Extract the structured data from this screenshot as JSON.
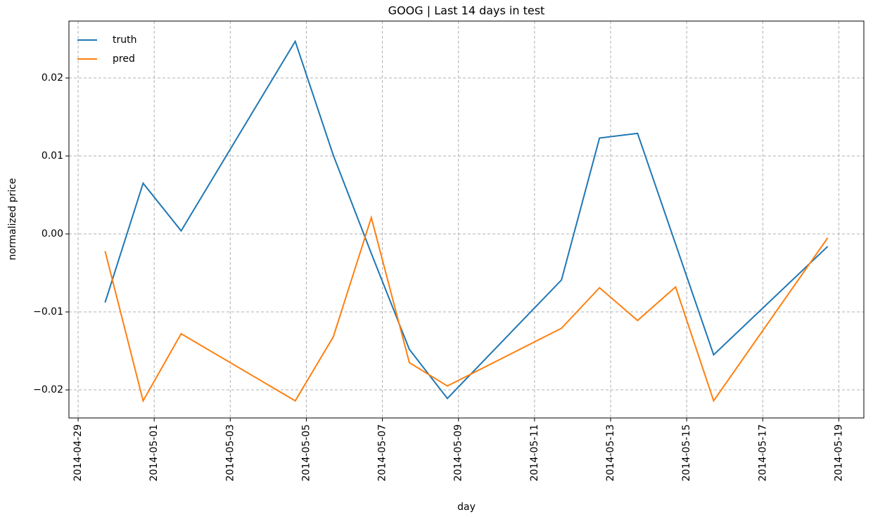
{
  "chart_data": {
    "type": "line",
    "title": "GOOG | Last 14 days in test",
    "xlabel": "day",
    "ylabel": "normalized price",
    "x": [
      "2014-04-29T17:00",
      "2014-04-30T17:00",
      "2014-05-01T17:00",
      "2014-05-04T17:00",
      "2014-05-05T17:00",
      "2014-05-06T17:00",
      "2014-05-07T17:00",
      "2014-05-08T17:00",
      "2014-05-11T17:00",
      "2014-05-12T17:00",
      "2014-05-13T17:00",
      "2014-05-14T17:00",
      "2014-05-15T17:00",
      "2014-05-18T17:00"
    ],
    "series": [
      {
        "name": "truth",
        "color": "#1f77b4",
        "values": [
          -0.0088,
          0.0065,
          0.0004,
          0.0247,
          0.0101,
          -0.0025,
          -0.0148,
          -0.0211,
          -0.0059,
          0.0123,
          0.0129,
          -0.0013,
          -0.0155,
          -0.0016
        ]
      },
      {
        "name": "pred",
        "color": "#ff7f0e",
        "values": [
          -0.0022,
          -0.0214,
          -0.0128,
          -0.0214,
          -0.0132,
          0.0021,
          -0.0165,
          -0.0195,
          -0.0121,
          -0.0069,
          -0.0111,
          -0.0068,
          -0.0214,
          -0.0005
        ]
      }
    ],
    "xlim": [
      "2014-04-28T18:12",
      "2014-05-19T15:48"
    ],
    "xticks": [
      "2014-04-29",
      "2014-05-01",
      "2014-05-03",
      "2014-05-05",
      "2014-05-07",
      "2014-05-09",
      "2014-05-11",
      "2014-05-13",
      "2014-05-15",
      "2014-05-17",
      "2014-05-19"
    ],
    "ylim": [
      -0.0236,
      0.0273
    ],
    "yticks": [
      {
        "value": -0.02,
        "label": "−0.02"
      },
      {
        "value": -0.01,
        "label": "−0.01"
      },
      {
        "value": 0,
        "label": "0.00"
      },
      {
        "value": 0.01,
        "label": "0.01"
      },
      {
        "value": 0.02,
        "label": "0.02"
      }
    ],
    "grid": true,
    "legend": "upper left"
  }
}
